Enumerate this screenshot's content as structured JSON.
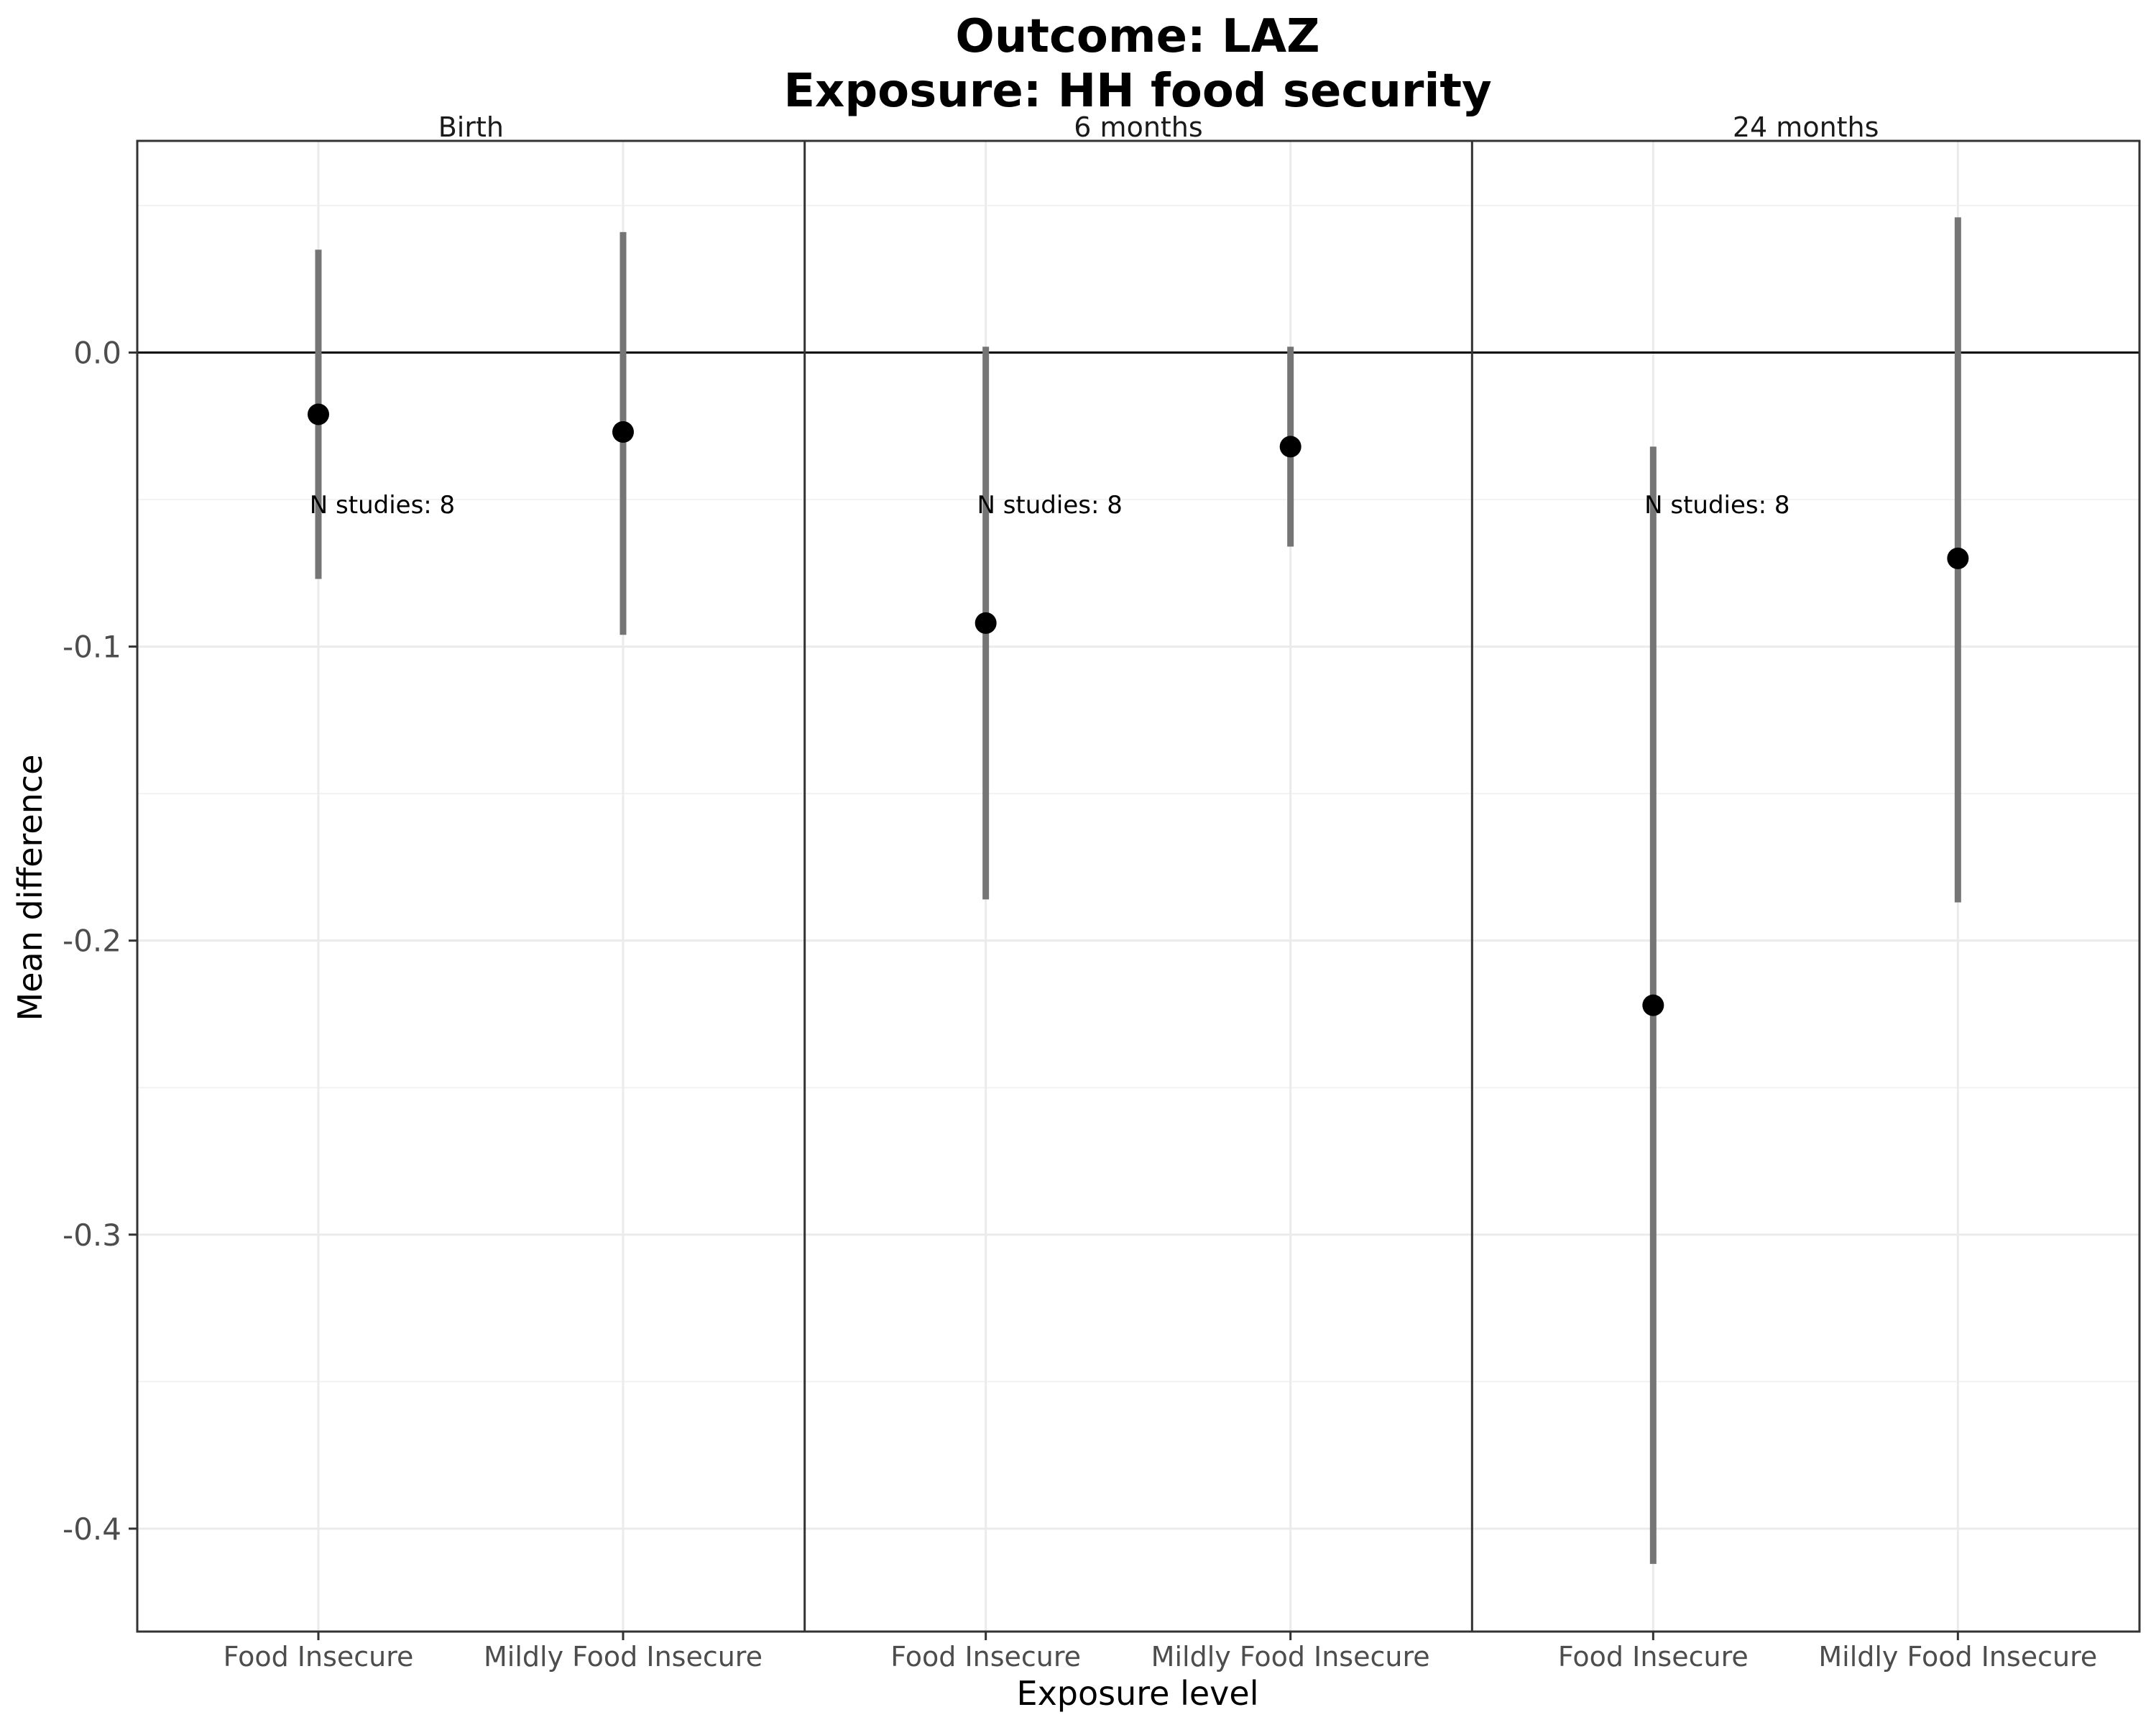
{
  "chart_data": {
    "type": "scatter",
    "title": "Outcome: LAZ",
    "subtitle": "Exposure: HH food security",
    "xlabel": "Exposure level",
    "ylabel": "Mean difference",
    "ylim": [
      -0.435,
      0.072
    ],
    "yticks": [
      0.0,
      -0.1,
      -0.2,
      -0.3,
      -0.4
    ],
    "ytick_labels": [
      "0.0",
      "-0.1",
      "-0.2",
      "-0.3",
      "-0.4"
    ],
    "categories": [
      "Food Insecure",
      "Mildly Food Insecure"
    ],
    "reference_line": 0,
    "grid": true,
    "panels": [
      {
        "label": "Birth",
        "annotation": "N studies: 8",
        "points": [
          {
            "category": "Food Insecure",
            "estimate": -0.021,
            "ci_lower": -0.077,
            "ci_upper": 0.035
          },
          {
            "category": "Mildly Food Insecure",
            "estimate": -0.027,
            "ci_lower": -0.096,
            "ci_upper": 0.041
          }
        ]
      },
      {
        "label": "6 months",
        "annotation": "N studies: 8",
        "points": [
          {
            "category": "Food Insecure",
            "estimate": -0.092,
            "ci_lower": -0.186,
            "ci_upper": 0.002
          },
          {
            "category": "Mildly Food Insecure",
            "estimate": -0.032,
            "ci_lower": -0.066,
            "ci_upper": 0.002
          }
        ]
      },
      {
        "label": "24 months",
        "annotation": "N studies: 8",
        "points": [
          {
            "category": "Food Insecure",
            "estimate": -0.222,
            "ci_lower": -0.412,
            "ci_upper": -0.032
          },
          {
            "category": "Mildly Food Insecure",
            "estimate": -0.07,
            "ci_lower": -0.187,
            "ci_upper": 0.046
          }
        ]
      }
    ]
  }
}
